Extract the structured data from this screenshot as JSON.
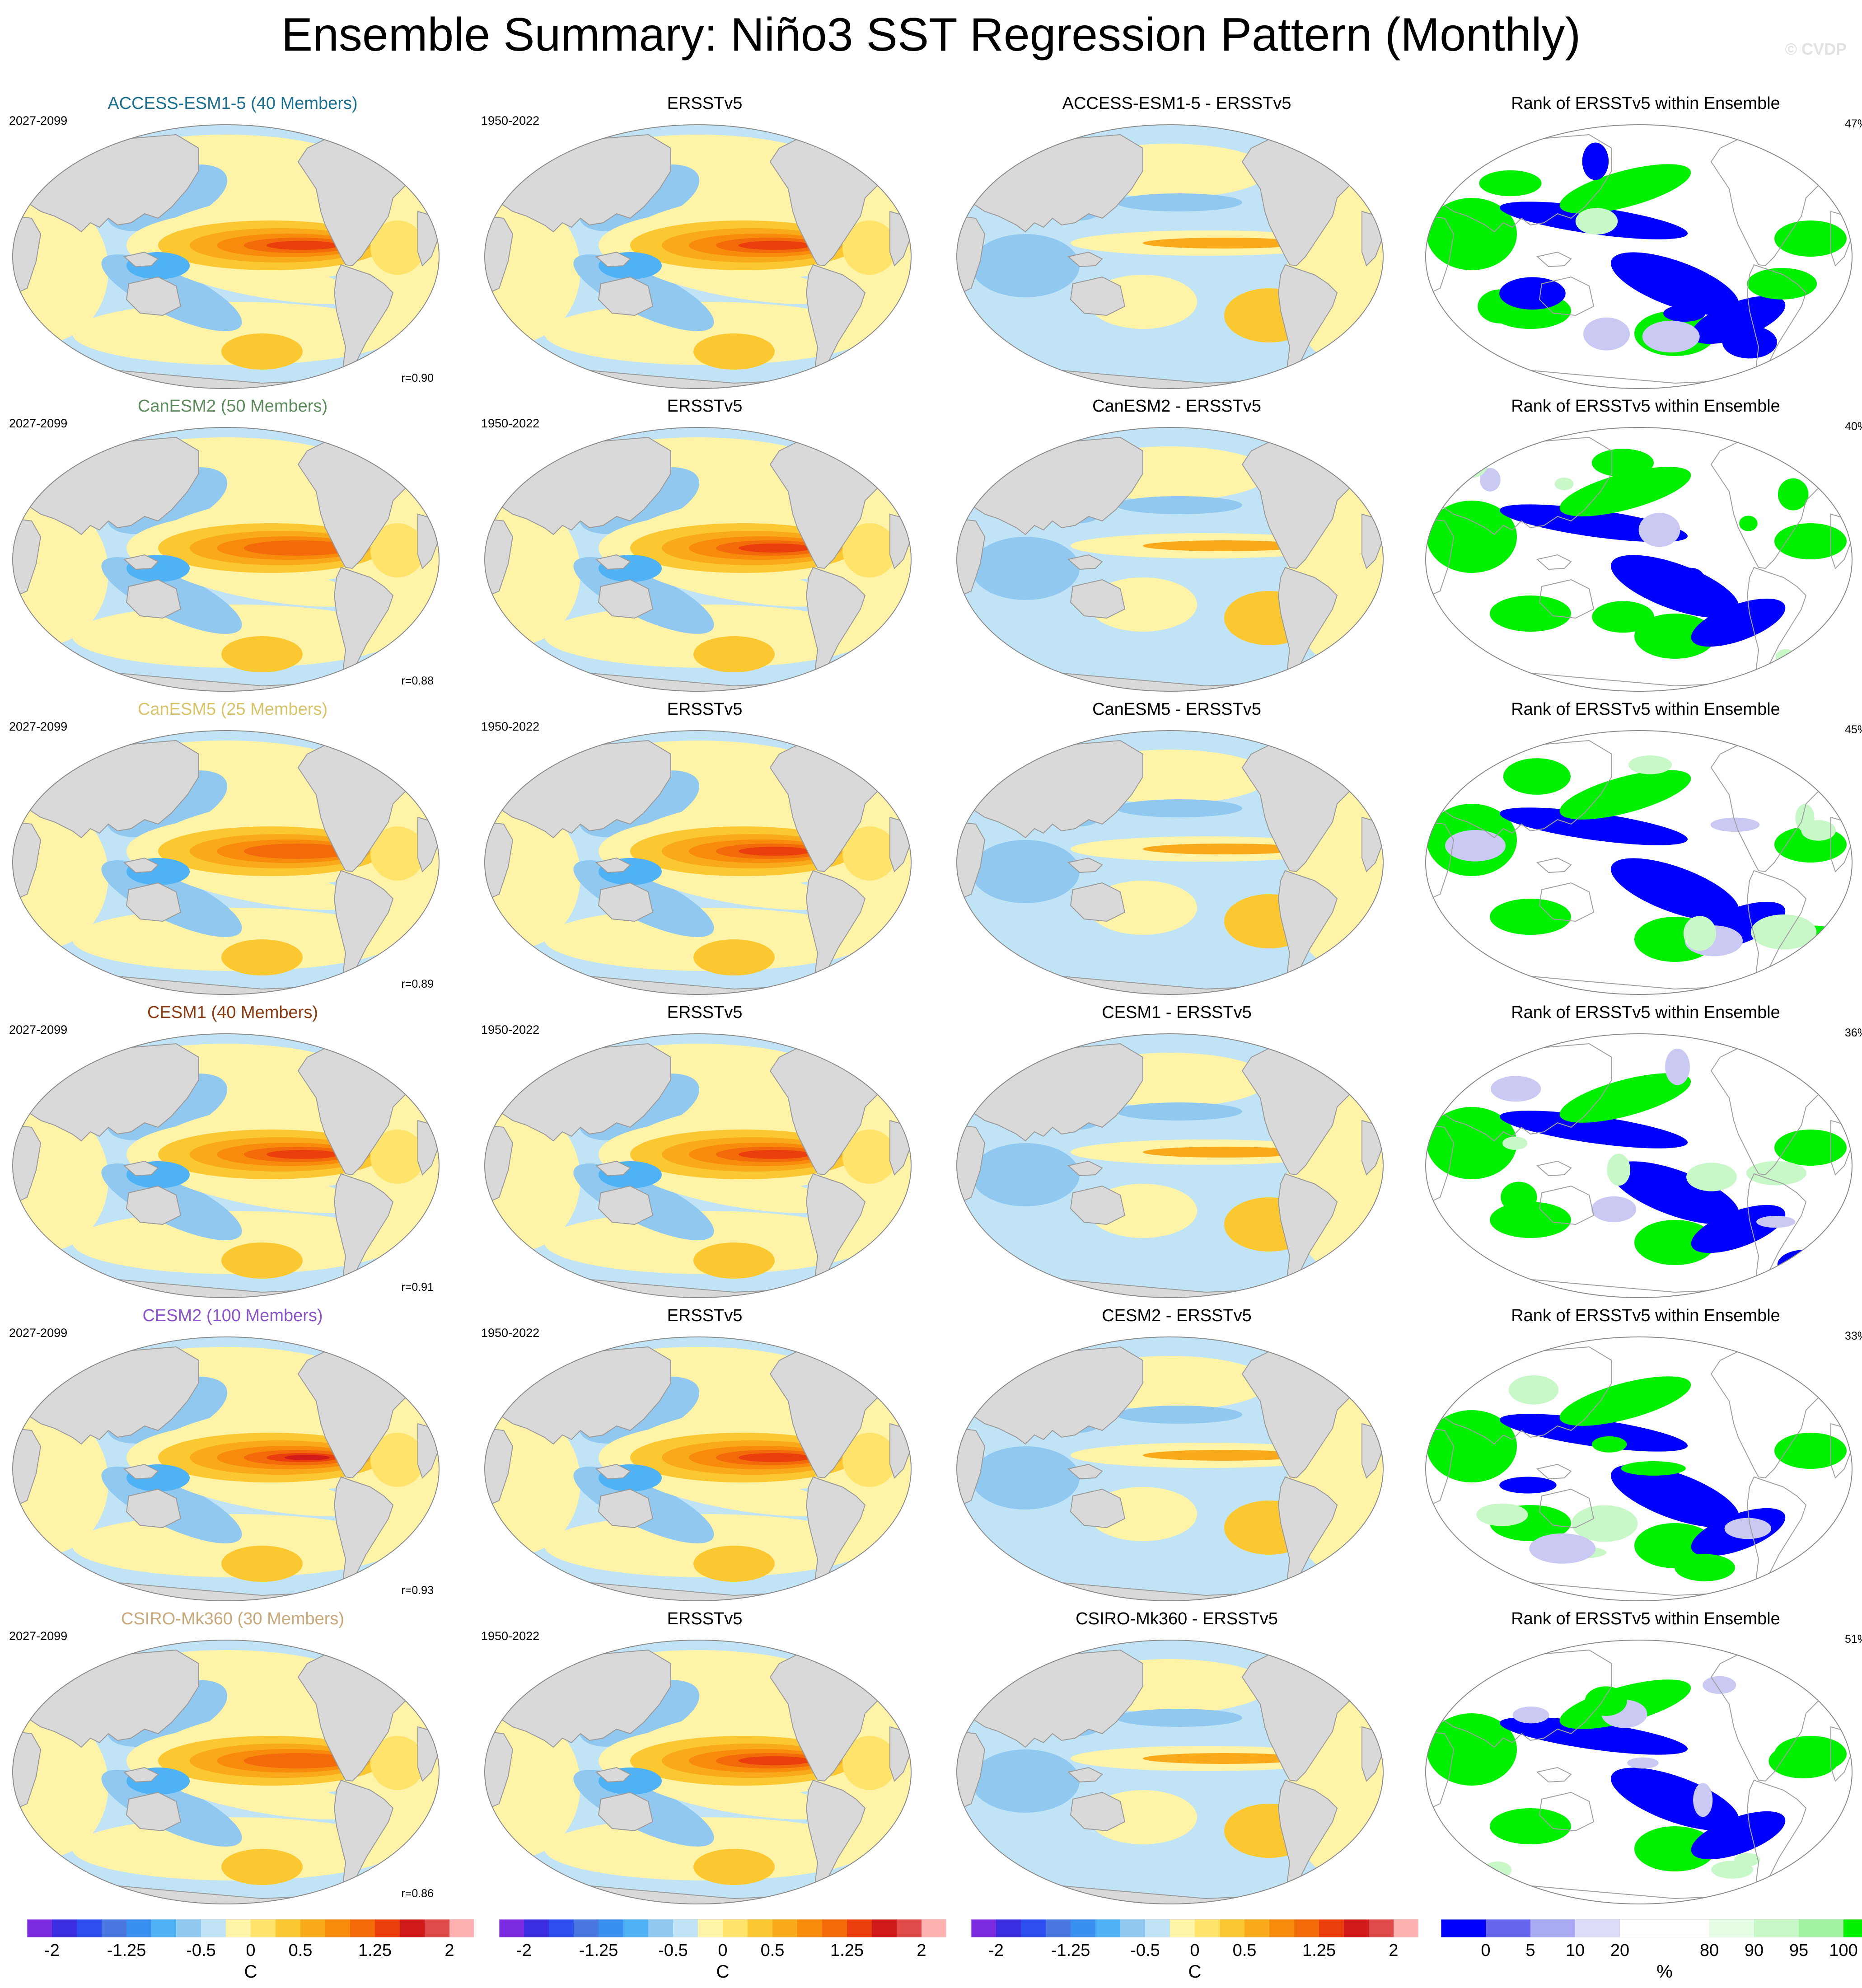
{
  "title": "Ensemble Summary: Niño3 SST Regression Pattern (Monthly)",
  "watermark": "© CVDP",
  "rows": [
    {
      "model": "ACCESS-ESM1-5 (40 Members)",
      "model_color": "#1a6e8e",
      "model_years": "2027-2099",
      "corr": "r=0.90",
      "obs_title": "ERSSTv5",
      "obs_years": "1950-2022",
      "diff_title": "ACCESS-ESM1-5 - ERSSTv5",
      "rank_title": "Rank of ERSSTv5 within Ensemble",
      "rank_pct": "47%"
    },
    {
      "model": "CanESM2 (50 Members)",
      "model_color": "#5c8a5c",
      "model_years": "2027-2099",
      "corr": "r=0.88",
      "obs_title": "ERSSTv5",
      "obs_years": "1950-2022",
      "diff_title": "CanESM2 - ERSSTv5",
      "rank_title": "Rank of ERSSTv5 within Ensemble",
      "rank_pct": "40%"
    },
    {
      "model": "CanESM5 (25 Members)",
      "model_color": "#d7c46a",
      "model_years": "2027-2099",
      "corr": "r=0.89",
      "obs_title": "ERSSTv5",
      "obs_years": "1950-2022",
      "diff_title": "CanESM5 - ERSSTv5",
      "rank_title": "Rank of ERSSTv5 within Ensemble",
      "rank_pct": "45%"
    },
    {
      "model": "CESM1 (40 Members)",
      "model_color": "#8a3b12",
      "model_years": "2027-2099",
      "corr": "r=0.91",
      "obs_title": "ERSSTv5",
      "obs_years": "1950-2022",
      "diff_title": "CESM1 - ERSSTv5",
      "rank_title": "Rank of ERSSTv5 within Ensemble",
      "rank_pct": "36%"
    },
    {
      "model": "CESM2 (100 Members)",
      "model_color": "#8a55c6",
      "model_years": "2027-2099",
      "corr": "r=0.93",
      "obs_title": "ERSSTv5",
      "obs_years": "1950-2022",
      "diff_title": "CESM2 - ERSSTv5",
      "rank_title": "Rank of ERSSTv5 within Ensemble",
      "rank_pct": "33%"
    },
    {
      "model": "CSIRO-Mk360 (30 Members)",
      "model_color": "#c7a97c",
      "model_years": "2027-2099",
      "corr": "r=0.86",
      "obs_title": "ERSSTv5",
      "obs_years": "1950-2022",
      "diff_title": "CSIRO-Mk360 - ERSSTv5",
      "rank_title": "Rank of ERSSTv5 within Ensemble",
      "rank_pct": "51%"
    }
  ],
  "sst_colorbar": {
    "colors": [
      "#7b2be0",
      "#3b2ee0",
      "#2e4ff0",
      "#4a78e0",
      "#3a90f0",
      "#4fb2f5",
      "#90c8f0",
      "#c0e4f5",
      "#fff3a8",
      "#ffe36a",
      "#fcc832",
      "#f9aa1a",
      "#f98b0c",
      "#f26a0a",
      "#ea3e0c",
      "#d11a1a",
      "#e04a4a",
      "#ffb0b0"
    ],
    "ticks": [
      "-2",
      "-1.25",
      "-0.5",
      "0",
      "0.5",
      "1.25",
      "2"
    ],
    "tick_positions": [
      1,
      4,
      7,
      9,
      11,
      14,
      17
    ],
    "unit": "C"
  },
  "rank_colorbar": {
    "colors": [
      "#0000ff",
      "#6666ee",
      "#aaaaf4",
      "#dcdcf8",
      "#ffffff",
      "#ffffff",
      "#e4fbe4",
      "#c8f7c8",
      "#a2f2a2",
      "#00f000"
    ],
    "ticks": [
      "0",
      "5",
      "10",
      "20",
      "80",
      "90",
      "95",
      "100"
    ],
    "tick_positions": [
      1,
      2,
      3,
      4,
      6,
      7,
      8,
      9
    ],
    "unit": "%"
  }
}
